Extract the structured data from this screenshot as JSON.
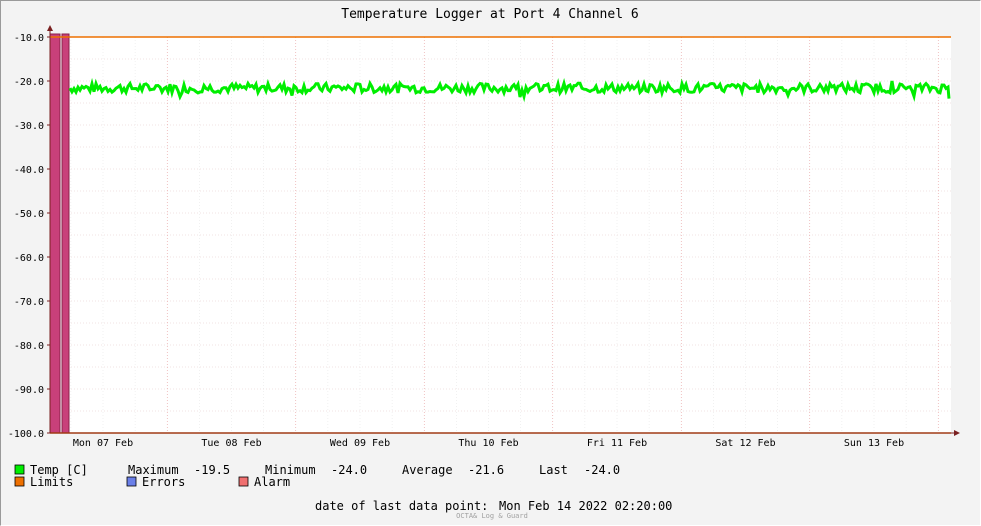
{
  "chart_data": {
    "type": "line",
    "title": "Temperature Logger at Port 4 Channel 6",
    "ylim": [
      -100.0,
      -10.0
    ],
    "y_ticks": [
      "-10.0",
      "-20.0",
      "-30.0",
      "-40.0",
      "-50.0",
      "-60.0",
      "-70.0",
      "-80.0",
      "-90.0",
      "-100.0"
    ],
    "y_tick_values": [
      -10,
      -20,
      -30,
      -40,
      -50,
      -60,
      -70,
      -80,
      -90,
      -100
    ],
    "x_range_days": [
      0,
      7.0
    ],
    "x_ticks": [
      "Mon 07 Feb",
      "Tue 08 Feb",
      "Wed 09 Feb",
      "Thu 10 Feb",
      "Fri 11 Feb",
      "Sat 12 Feb",
      "Sun 13 Feb"
    ],
    "grid": true,
    "series": [
      {
        "name": "Temp [C]",
        "color": "#00ee00",
        "kind": "line",
        "start_day": 0.05,
        "end_day": 7.0,
        "min": -24.0,
        "max": -19.5,
        "average": -21.6,
        "last": -24.0
      },
      {
        "name": "Limits",
        "color": "#ee7000",
        "kind": "hline",
        "values": [
          -10.0,
          -100.0
        ]
      },
      {
        "name": "Errors",
        "color": "#6a7fe8",
        "kind": "legend-only"
      },
      {
        "name": "Alarm",
        "color": "#b03060",
        "kind": "bar",
        "x_start_day": -0.15,
        "x_end_day": 0.0,
        "fill": "#c8407a",
        "edge": "#8a1f48"
      }
    ],
    "legend": {
      "temp_label": "Temp [C]",
      "maximum_label": "Maximum",
      "maximum_value": "-19.5",
      "minimum_label": "Minimum",
      "minimum_value": "-24.0",
      "average_label": "Average",
      "average_value": "-21.6",
      "last_label": "Last",
      "last_value": "-24.0",
      "limits_label": "Limits",
      "errors_label": "Errors",
      "alarm_label": "Alarm",
      "temp_color": "#00ee00",
      "limits_color": "#ee7000",
      "errors_color": "#6a7fe8",
      "alarm_color": "#f07070"
    },
    "footer": {
      "last_point_label": "date of last data point:",
      "last_point_value": "Mon Feb 14 2022 02:20:00",
      "watermark": "OCTA& Log & Guard"
    }
  }
}
